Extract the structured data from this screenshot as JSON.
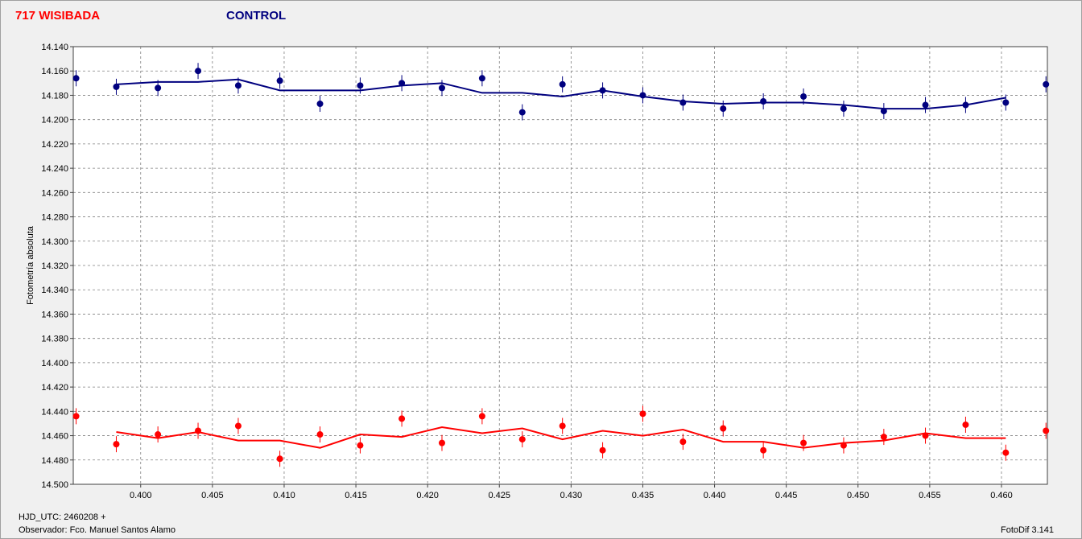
{
  "legend": {
    "target_label": "717 WISIBADA",
    "control_label": "CONTROL"
  },
  "footer": {
    "hjd": "HJD_UTC: 2460208 +",
    "observer": "Observador: Fco. Manuel Santos Alamo",
    "software": "FotoDif 3.141"
  },
  "colors": {
    "target": "#ff0000",
    "control": "#00007f",
    "grid": "#808080"
  },
  "chart_data": {
    "type": "scatter",
    "ylabel": "Fotometría absoluta",
    "xlabel": "",
    "xlim": [
      0.3953,
      0.4632
    ],
    "ylim": [
      14.14,
      14.5
    ],
    "y_inverted": true,
    "grid": true,
    "y_ticks": [
      "14.140",
      "14.160",
      "14.180",
      "14.200",
      "14.220",
      "14.240",
      "14.260",
      "14.280",
      "14.300",
      "14.320",
      "14.340",
      "14.360",
      "14.380",
      "14.400",
      "14.420",
      "14.440",
      "14.460",
      "14.480",
      "14.500"
    ],
    "x_ticks": [
      "0.400",
      "0.405",
      "0.410",
      "0.415",
      "0.420",
      "0.425",
      "0.430",
      "0.435",
      "0.440",
      "0.445",
      "0.450",
      "0.455",
      "0.460"
    ],
    "series": [
      {
        "name": "CONTROL",
        "color": "#00007f",
        "points": {
          "x": [
            0.3955,
            0.3983,
            0.4012,
            0.404,
            0.4068,
            0.4097,
            0.4125,
            0.4153,
            0.4182,
            0.421,
            0.4238,
            0.4266,
            0.4294,
            0.4322,
            0.435,
            0.4378,
            0.4406,
            0.4434,
            0.4462,
            0.449,
            0.4518,
            0.4547,
            0.4575,
            0.4603,
            0.4631
          ],
          "y": [
            14.166,
            14.173,
            14.174,
            14.16,
            14.172,
            14.168,
            14.187,
            14.172,
            14.17,
            14.174,
            14.166,
            14.194,
            14.171,
            14.176,
            14.18,
            14.186,
            14.191,
            14.185,
            14.181,
            14.191,
            14.193,
            14.188,
            14.188,
            14.186,
            14.171
          ]
        },
        "line": {
          "x": [
            0.3983,
            0.4012,
            0.404,
            0.4068,
            0.4097,
            0.4125,
            0.4153,
            0.4182,
            0.421,
            0.4238,
            0.4266,
            0.4294,
            0.4322,
            0.435,
            0.4378,
            0.4406,
            0.4434,
            0.4462,
            0.449,
            0.4518,
            0.4547,
            0.4575,
            0.4603
          ],
          "y": [
            14.171,
            14.169,
            14.169,
            14.167,
            14.176,
            14.176,
            14.176,
            14.172,
            14.17,
            14.178,
            14.178,
            14.181,
            14.176,
            14.181,
            14.185,
            14.187,
            14.186,
            14.186,
            14.188,
            14.191,
            14.191,
            14.188,
            14.182
          ]
        }
      },
      {
        "name": "717 WISIBADA",
        "color": "#ff0000",
        "points": {
          "x": [
            0.3955,
            0.3983,
            0.4012,
            0.404,
            0.4068,
            0.4097,
            0.4125,
            0.4153,
            0.4182,
            0.421,
            0.4238,
            0.4266,
            0.4294,
            0.4322,
            0.435,
            0.4378,
            0.4406,
            0.4434,
            0.4462,
            0.449,
            0.4518,
            0.4547,
            0.4575,
            0.4603,
            0.4631
          ],
          "y": [
            14.444,
            14.467,
            14.459,
            14.456,
            14.452,
            14.479,
            14.459,
            14.468,
            14.446,
            14.466,
            14.444,
            14.463,
            14.452,
            14.472,
            14.442,
            14.465,
            14.454,
            14.472,
            14.466,
            14.468,
            14.461,
            14.46,
            14.451,
            14.474,
            14.456
          ]
        },
        "line": {
          "x": [
            0.3983,
            0.4012,
            0.404,
            0.4068,
            0.4097,
            0.4125,
            0.4153,
            0.4182,
            0.421,
            0.4238,
            0.4266,
            0.4294,
            0.4322,
            0.435,
            0.4378,
            0.4406,
            0.4434,
            0.4462,
            0.449,
            0.4518,
            0.4547,
            0.4575,
            0.4603
          ],
          "y": [
            14.457,
            14.462,
            14.457,
            14.464,
            14.464,
            14.47,
            14.459,
            14.461,
            14.453,
            14.458,
            14.454,
            14.463,
            14.456,
            14.46,
            14.455,
            14.465,
            14.465,
            14.47,
            14.466,
            14.464,
            14.458,
            14.462,
            14.462
          ]
        }
      }
    ]
  }
}
